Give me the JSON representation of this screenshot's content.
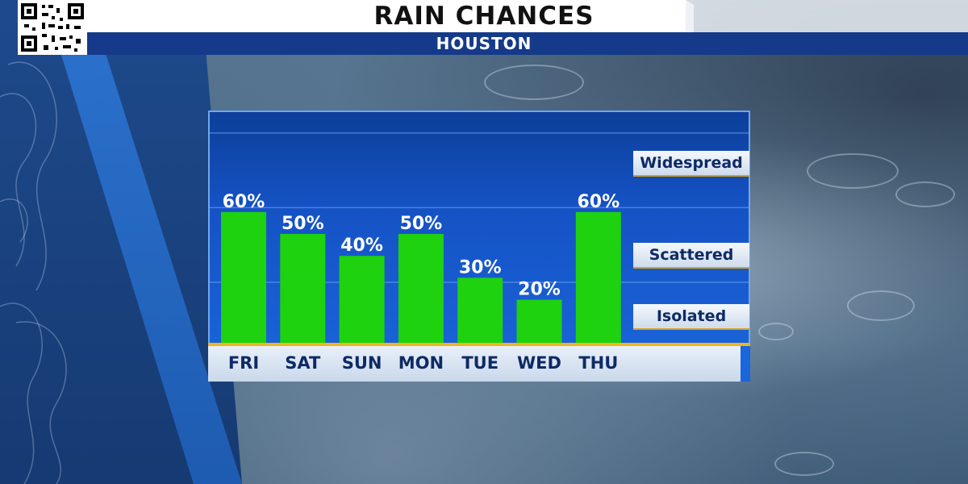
{
  "header": {
    "title": "RAIN CHANCES",
    "subtitle": "HOUSTON"
  },
  "levels": [
    {
      "label": "Widespread",
      "value": 85
    },
    {
      "label": "Scattered",
      "value": 40
    },
    {
      "label": "Isolated",
      "value": 12
    }
  ],
  "colors": {
    "bar": "#1ed20f",
    "baseline": "#f0b51d",
    "chart_bg": "#1552c4"
  },
  "chart_data": {
    "type": "bar",
    "categories": [
      "FRI",
      "SAT",
      "SUN",
      "MON",
      "TUE",
      "WED",
      "THU"
    ],
    "values": [
      60,
      50,
      40,
      50,
      30,
      20,
      60
    ],
    "value_labels": [
      "60%",
      "50%",
      "40%",
      "50%",
      "30%",
      "20%",
      "60%"
    ],
    "ylim": [
      0,
      100
    ],
    "title": "RAIN CHANCES",
    "xlabel": "",
    "ylabel": ""
  }
}
